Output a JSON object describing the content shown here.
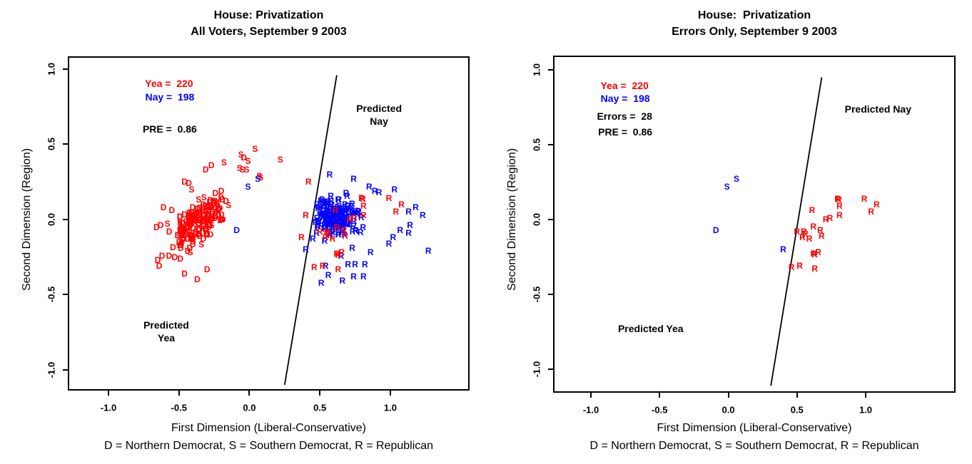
{
  "figure": {
    "background": "#ffffff",
    "colors": {
      "yea": "#FF0000",
      "nay": "#0000FF",
      "ink": "#000000"
    }
  },
  "chart_data": {
    "type": "scatter",
    "point_legend": "D = Northern Democrat, S = Southern Democrat, R = Republican",
    "vote_counts": {
      "yea": 220,
      "nay": 198,
      "errors": 28,
      "pre": 0.86
    },
    "letter_meaning": {
      "D": "Northern Democrat",
      "S": "Southern Democrat",
      "R": "Republican"
    },
    "color_meaning": {
      "red": "Yea vote",
      "blue": "Nay vote"
    },
    "error_points": [
      [
        "S",
        -0.01,
        0.22,
        "nay"
      ],
      [
        "S",
        0.06,
        0.27,
        "nay"
      ],
      [
        "D",
        -0.09,
        -0.07,
        "nay"
      ],
      [
        "R",
        0.4,
        -0.2,
        "nay"
      ],
      [
        "R",
        0.61,
        0.06,
        "yea"
      ],
      [
        "R",
        0.71,
        0.0,
        "yea"
      ],
      [
        "R",
        0.74,
        0.01,
        "yea"
      ],
      [
        "R",
        0.795,
        0.14,
        "yea"
      ],
      [
        "R",
        0.805,
        0.135,
        "yea"
      ],
      [
        "R",
        0.81,
        0.09,
        "yea"
      ],
      [
        "R",
        0.81,
        0.03,
        "yea"
      ],
      [
        "R",
        0.99,
        0.14,
        "yea"
      ],
      [
        "R",
        1.04,
        0.05,
        "yea"
      ],
      [
        "R",
        1.08,
        0.1,
        "yea"
      ],
      [
        "R",
        0.5,
        -0.08,
        "yea"
      ],
      [
        "R",
        0.55,
        -0.08,
        "yea"
      ],
      [
        "R",
        0.56,
        -0.095,
        "yea"
      ],
      [
        "R",
        0.62,
        -0.05,
        "yea"
      ],
      [
        "R",
        0.67,
        -0.07,
        "yea"
      ],
      [
        "R",
        0.54,
        -0.12,
        "yea"
      ],
      [
        "R",
        0.59,
        -0.13,
        "yea"
      ],
      [
        "R",
        0.68,
        -0.11,
        "yea"
      ],
      [
        "R",
        0.62,
        -0.23,
        "yea"
      ],
      [
        "R",
        0.655,
        -0.22,
        "yea"
      ],
      [
        "R",
        0.63,
        -0.235,
        "yea"
      ],
      [
        "R",
        0.46,
        -0.32,
        "yea"
      ],
      [
        "R",
        0.52,
        -0.31,
        "yea"
      ],
      [
        "R",
        0.63,
        -0.33,
        "yea"
      ]
    ],
    "panels": [
      {
        "title": "House: Privatization",
        "subtitle": "All Voters, September 9 2003",
        "xlabel": "First Dimension (Liberal-Conservative)",
        "ylabel": "Second Dimension (Region)",
        "xlim": [
          -1.29,
          1.56
        ],
        "ylim": [
          -1.15,
          1.09
        ],
        "xticks": {
          "values": [
            -1,
            -0.5,
            0,
            0.5,
            1
          ],
          "labels": [
            "-1.0",
            "-0.5",
            "0.0",
            "0.5",
            "1.0"
          ]
        },
        "yticks": {
          "values": [
            1,
            0.5,
            0,
            -0.5,
            -1
          ],
          "labels": [
            "1.0",
            "0.5",
            "0.0",
            "-0.5",
            "-1.0"
          ]
        },
        "annotations": [
          {
            "text": "Yea =  220",
            "color": "yea",
            "x": -0.57,
            "y": 0.905
          },
          {
            "text": "Nay =  198",
            "color": "nay",
            "x": -0.565,
            "y": 0.815
          },
          {
            "text": "PRE =  0.86",
            "color": "ink",
            "x": -0.565,
            "y": 0.6
          }
        ],
        "region_labels": [
          {
            "lines": [
              "Predicted",
              "Nay"
            ],
            "x": 0.92,
            "y": 0.74
          },
          {
            "lines": [
              "Predicted",
              "Yea"
            ],
            "x": -0.59,
            "y": -0.7
          }
        ],
        "cutting_line": {
          "x1": 0.62,
          "y1": 0.96,
          "x2": 0.25,
          "y2": -1.1
        },
        "show_errors": true,
        "points": [
          [
            "S",
            0.04,
            0.47,
            "yea"
          ],
          [
            "S",
            -0.06,
            0.43,
            "yea"
          ],
          [
            "D",
            -0.04,
            0.41,
            "yea"
          ],
          [
            "S",
            -0.01,
            0.39,
            "yea"
          ],
          [
            "S",
            0.22,
            0.4,
            "yea"
          ],
          [
            "S",
            -0.18,
            0.38,
            "yea"
          ],
          [
            "D",
            -0.27,
            0.36,
            "yea"
          ],
          [
            "D",
            -0.31,
            0.33,
            "yea"
          ],
          [
            "S",
            -0.07,
            0.34,
            "yea"
          ],
          [
            "S",
            -0.05,
            0.33,
            "yea"
          ],
          [
            "S",
            -0.02,
            0.33,
            "yea"
          ],
          [
            "S",
            0.07,
            0.29,
            "yea"
          ],
          [
            "D",
            -0.46,
            0.25,
            "yea"
          ],
          [
            "D",
            -0.43,
            0.24,
            "yea"
          ],
          [
            "S",
            -0.41,
            0.2,
            "yea"
          ],
          [
            "S",
            0.08,
            0.28,
            "yea"
          ],
          [
            "D",
            -0.66,
            -0.05,
            "yea"
          ],
          [
            "D",
            -0.63,
            -0.04,
            "yea"
          ],
          [
            "D",
            -0.61,
            0.08,
            "yea"
          ],
          [
            "D",
            -0.55,
            0.06,
            "yea"
          ],
          [
            "D",
            -0.62,
            -0.24,
            "yea"
          ],
          [
            "D",
            -0.57,
            -0.24,
            "yea"
          ],
          [
            "D",
            -0.65,
            -0.27,
            "yea"
          ],
          [
            "D",
            -0.53,
            -0.25,
            "yea"
          ],
          [
            "D",
            -0.49,
            -0.26,
            "yea"
          ],
          [
            "D",
            -0.64,
            -0.31,
            "yea"
          ],
          [
            "D",
            -0.37,
            -0.4,
            "yea"
          ],
          [
            "D",
            -0.46,
            -0.36,
            "yea"
          ],
          [
            "D",
            -0.3,
            -0.33,
            "yea"
          ],
          [
            "R",
            0.42,
            0.25,
            "yea"
          ],
          [
            "R",
            0.4,
            0.03,
            "yea"
          ],
          [
            "R",
            0.37,
            -0.12,
            "yea"
          ],
          [
            "R",
            0.57,
            0.3,
            "nay"
          ],
          [
            "R",
            0.74,
            0.27,
            "nay"
          ],
          [
            "R",
            0.85,
            0.22,
            "nay"
          ],
          [
            "R",
            0.89,
            0.19,
            "nay"
          ],
          [
            "R",
            0.92,
            0.18,
            "nay"
          ],
          [
            "R",
            1.03,
            0.2,
            "nay"
          ],
          [
            "R",
            1.18,
            0.08,
            "nay"
          ],
          [
            "R",
            1.23,
            0.03,
            "nay"
          ],
          [
            "R",
            1.13,
            0.05,
            "nay"
          ],
          [
            "R",
            1.14,
            -0.04,
            "nay"
          ],
          [
            "R",
            1.07,
            -0.07,
            "nay"
          ],
          [
            "R",
            1.13,
            -0.09,
            "nay"
          ],
          [
            "R",
            1.02,
            -0.12,
            "nay"
          ],
          [
            "R",
            0.99,
            -0.16,
            "nay"
          ],
          [
            "R",
            1.27,
            -0.21,
            "nay"
          ],
          [
            "R",
            0.54,
            -0.31,
            "nay"
          ],
          [
            "R",
            0.65,
            -0.24,
            "nay"
          ],
          [
            "R",
            0.73,
            -0.19,
            "nay"
          ],
          [
            "R",
            0.7,
            -0.3,
            "nay"
          ],
          [
            "R",
            0.75,
            -0.3,
            "nay"
          ],
          [
            "R",
            0.82,
            -0.3,
            "nay"
          ],
          [
            "R",
            0.86,
            -0.22,
            "nay"
          ],
          [
            "R",
            0.56,
            -0.37,
            "nay"
          ],
          [
            "R",
            0.66,
            -0.41,
            "nay"
          ],
          [
            "R",
            0.74,
            -0.38,
            "nay"
          ],
          [
            "R",
            0.81,
            -0.38,
            "nay"
          ],
          [
            "R",
            0.51,
            -0.42,
            "nay"
          ],
          [
            "R",
            0.48,
            0.1,
            "nay"
          ],
          [
            "R",
            0.47,
            -0.02,
            "nay"
          ],
          [
            "R",
            0.45,
            -0.13,
            "nay"
          ]
        ],
        "clusters": [
          {
            "n": 164,
            "letter": "D",
            "alt_letter": "S",
            "alt_frac": 0.18,
            "color": "yea",
            "cx": -0.36,
            "cy": -0.03,
            "rx": 0.27,
            "ry": 0.2,
            "tilt": 0.55,
            "seed": 7,
            "clamp": "left"
          },
          {
            "n": 164,
            "letter": "R",
            "alt_letter": "R",
            "alt_frac": 0,
            "color": "nay",
            "cx": 0.615,
            "cy": 0.02,
            "rx": 0.24,
            "ry": 0.17,
            "tilt": 0.05,
            "seed": 13,
            "clamp": "right"
          }
        ]
      },
      {
        "title": "House:  Privatization",
        "subtitle": "Errors Only, September 9 2003",
        "xlabel": "First Dimension (Liberal-Conservative)",
        "ylabel": "Second Dimension (Region)",
        "xlim": [
          -1.29,
          1.56
        ],
        "ylim": [
          -1.15,
          1.09
        ],
        "xticks": {
          "values": [
            -1,
            -0.5,
            0,
            0.5,
            1
          ],
          "labels": [
            "-1.0",
            "-0.5",
            "0.0",
            "0.5",
            "1.0"
          ]
        },
        "yticks": {
          "values": [
            1,
            0.5,
            0,
            -0.5,
            -1
          ],
          "labels": [
            "1.0",
            "0.5",
            "0.0",
            "-0.5",
            "-1.0"
          ]
        },
        "annotations": [
          {
            "text": "Yea =  220",
            "color": "yea",
            "x": -0.755,
            "y": 0.895
          },
          {
            "text": "Nay =  198",
            "color": "nay",
            "x": -0.75,
            "y": 0.81
          },
          {
            "text": "Errors =  28",
            "color": "ink",
            "x": -0.755,
            "y": 0.69
          },
          {
            "text": "PRE =  0.86",
            "color": "ink",
            "x": -0.75,
            "y": 0.585
          }
        ],
        "region_labels": [
          {
            "lines": [
              "Predicted Nay"
            ],
            "x": 1.09,
            "y": 0.74
          },
          {
            "lines": [
              "Predicted Yea"
            ],
            "x": -0.565,
            "y": -0.73
          }
        ],
        "cutting_line": {
          "x1": 0.68,
          "y1": 0.95,
          "x2": 0.31,
          "y2": -1.11
        },
        "show_errors": true,
        "points": [],
        "clusters": []
      }
    ]
  }
}
